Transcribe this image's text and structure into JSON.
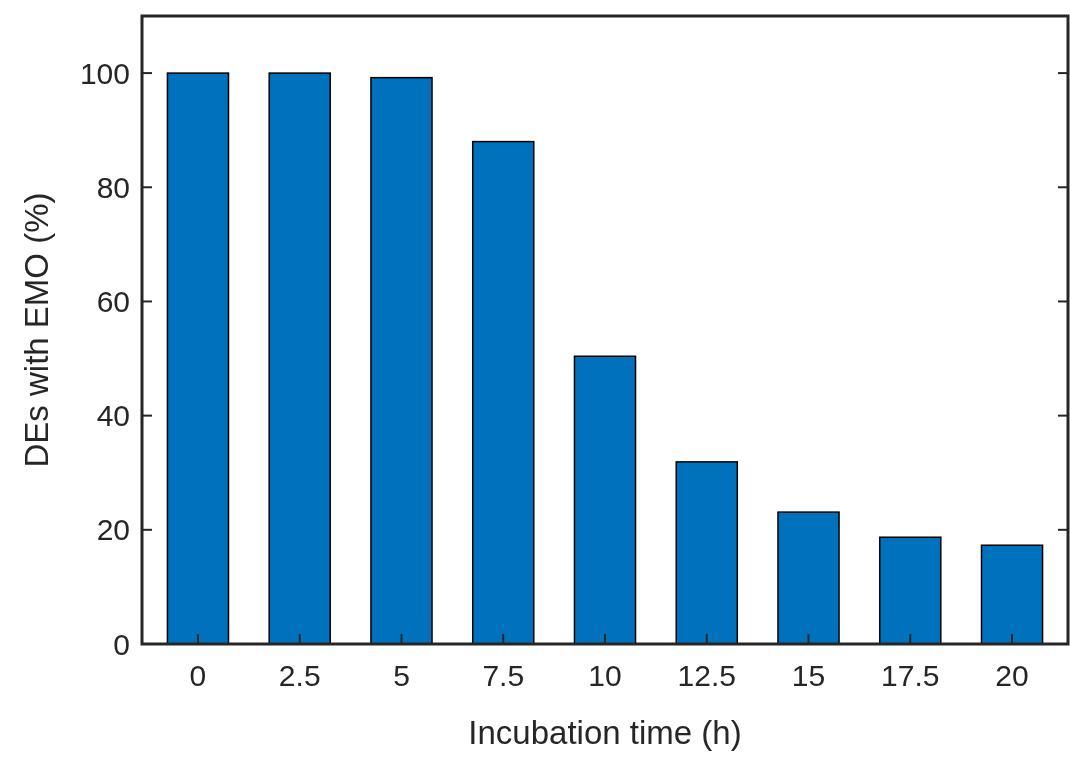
{
  "chart_data": {
    "type": "bar",
    "xlabel": "Incubation time (h)",
    "ylabel": "DEs with EMO (%)",
    "categories": [
      "0",
      "2.5",
      "5",
      "7.5",
      "10",
      "12.5",
      "15",
      "17.5",
      "20"
    ],
    "values": [
      100,
      100,
      99.2,
      88,
      50.4,
      31.9,
      23.1,
      18.7,
      17.3
    ],
    "color": "#0072bd",
    "ylim": [
      0,
      110
    ],
    "yticks": [
      0,
      20,
      40,
      60,
      80,
      100
    ],
    "grid": false
  }
}
